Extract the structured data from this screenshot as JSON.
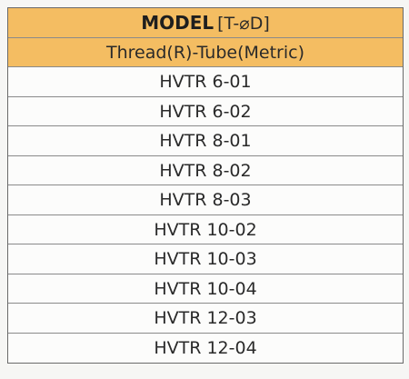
{
  "header": {
    "title": "MODEL",
    "subtitle": "[T-⌀D]",
    "description": "Thread(R)-Tube(Metric)"
  },
  "table": {
    "rows": [
      "HVTR 6-01",
      "HVTR 6-02",
      "HVTR 8-01",
      "HVTR 8-02",
      "HVTR 8-03",
      "HVTR 10-02",
      "HVTR 10-03",
      "HVTR 10-04",
      "HVTR 12-03",
      "HVTR 12-04"
    ]
  }
}
